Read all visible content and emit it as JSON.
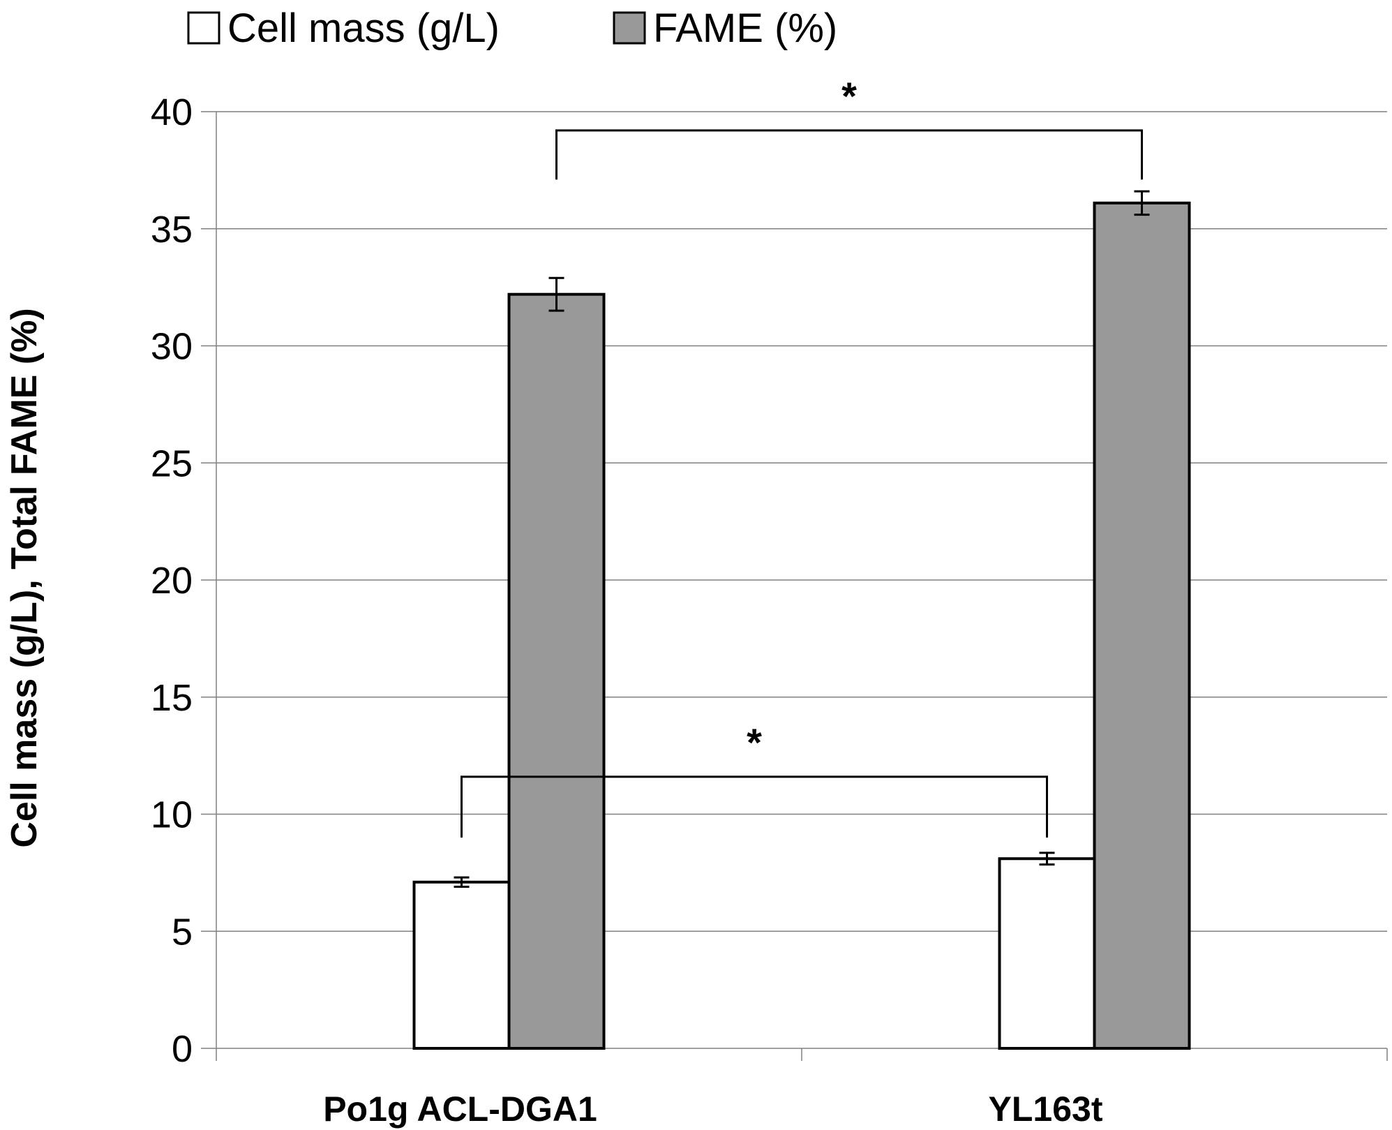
{
  "chart_data": {
    "type": "bar",
    "title": "",
    "xlabel": "",
    "ylabel": "Cell mass (g/L), Total FAME (%)",
    "ylim": [
      0,
      40
    ],
    "yticks": [
      0,
      5,
      10,
      15,
      20,
      25,
      30,
      35,
      40
    ],
    "grid": true,
    "legend_position": "top",
    "categories": [
      "Po1g ACL-DGA1",
      "YL163t"
    ],
    "series": [
      {
        "name": "Cell mass (g/L)",
        "color": "#ffffff",
        "values": [
          7.1,
          8.1
        ],
        "errors": [
          0.2,
          0.25
        ]
      },
      {
        "name": "FAME (%)",
        "color": "#999999",
        "values": [
          32.2,
          36.1
        ],
        "errors": [
          0.7,
          0.5
        ]
      }
    ],
    "annotations": [
      {
        "type": "significance",
        "label": "*",
        "series": "FAME (%)",
        "between": [
          "Po1g ACL-DGA1",
          "YL163t"
        ],
        "level": 39.2,
        "drop": 37.1
      },
      {
        "type": "significance",
        "label": "*",
        "series": "Cell mass (g/L)",
        "between": [
          "Po1g ACL-DGA1",
          "YL163t"
        ],
        "level": 11.6,
        "drop": 9.0
      }
    ]
  },
  "colors": {
    "axis": "#808080",
    "grid": "#808080",
    "bar_stroke": "#000000"
  }
}
